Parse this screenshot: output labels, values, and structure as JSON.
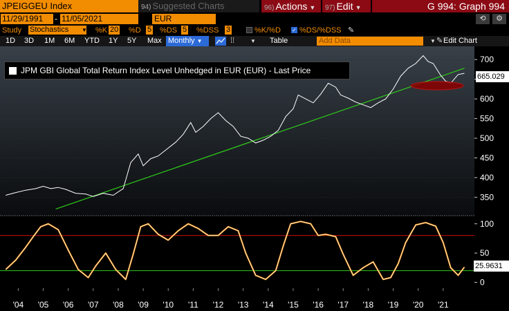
{
  "toolbar": {
    "ticker": "JPEIGGEU Index",
    "suggested_num": "94)",
    "suggested_label": "Suggested Charts",
    "actions_num": "96)",
    "actions_label": "Actions",
    "edit_num": "97)",
    "edit_label": "Edit",
    "graph_id": "G 994: Graph 994"
  },
  "range": {
    "start_date": "11/29/1991",
    "end_date": "11/05/2021",
    "currency": "EUR",
    "undo_icon": "undo-icon",
    "settings_icon": "settings-icon"
  },
  "study": {
    "label": "Study",
    "selected": "Stochastics",
    "k_label": "%K",
    "k_value": "20",
    "d_label": "%D",
    "d_value": "5",
    "ds_label": "%DS",
    "ds_value": "5",
    "dss_label": "%DSS",
    "dss_value": "3",
    "kd_label": "%K/%D",
    "kd_checked": false,
    "dsdss_label": "%DS/%DSS",
    "dsdss_checked": true
  },
  "periods": {
    "items": [
      "1D",
      "3D",
      "1M",
      "6M",
      "YTD",
      "1Y",
      "5Y",
      "Max"
    ],
    "selected": "Monthly",
    "table_label": "Table",
    "add_data_placeholder": "Add Data",
    "edit_chart_label": "Edit Chart"
  },
  "colors": {
    "accent": "#f28c00",
    "price_line": "#ffffff",
    "trend_line": "#2ecc1a",
    "stoch_k": "#f28c00",
    "stoch_d": "#ffffff",
    "overbought": "#d01010",
    "oversold": "#2ecc1a",
    "highlight_ellipse": "#c00000"
  },
  "chart_data": {
    "type": "line",
    "legend": "JPM GBI Global Total Return Index Level Unhedged in EUR (EUR) - Last Price",
    "last_price_label": "665.029",
    "stoch_last_label": "25.9631",
    "x_ticks": [
      "'04",
      "'05",
      "'06",
      "'07",
      "'08",
      "'09",
      "'10",
      "'11",
      "'12",
      "'13",
      "'14",
      "'15",
      "'16",
      "'17",
      "'18",
      "'19",
      "'20",
      "'21"
    ],
    "price_axis": {
      "ticks": [
        350,
        400,
        450,
        500,
        550,
        600,
        650,
        700
      ],
      "ylim": [
        305,
        725
      ]
    },
    "stoch_axis": {
      "ticks": [
        0,
        50,
        100
      ],
      "ylim": [
        -10,
        108
      ]
    },
    "price_series": {
      "name": "Last Price",
      "x": [
        2003.5,
        2003.9,
        2004.3,
        2004.7,
        2005.0,
        2005.3,
        2005.6,
        2005.9,
        2006.3,
        2006.7,
        2007.0,
        2007.4,
        2007.8,
        2008.2,
        2008.5,
        2008.8,
        2009.0,
        2009.3,
        2009.6,
        2009.9,
        2010.3,
        2010.6,
        2010.9,
        2011.1,
        2011.4,
        2011.7,
        2012.0,
        2012.3,
        2012.6,
        2012.9,
        2013.2,
        2013.5,
        2013.8,
        2014.1,
        2014.4,
        2014.7,
        2015.0,
        2015.2,
        2015.5,
        2015.8,
        2016.1,
        2016.4,
        2016.7,
        2016.9,
        2017.2,
        2017.5,
        2017.8,
        2018.1,
        2018.4,
        2018.7,
        2019.0,
        2019.3,
        2019.6,
        2019.9,
        2020.2,
        2020.4,
        2020.6,
        2020.9,
        2021.1,
        2021.3,
        2021.6,
        2021.85
      ],
      "y": [
        355,
        362,
        368,
        372,
        378,
        372,
        375,
        370,
        360,
        358,
        352,
        360,
        355,
        372,
        438,
        460,
        430,
        448,
        455,
        470,
        490,
        510,
        540,
        515,
        530,
        550,
        565,
        545,
        530,
        505,
        500,
        488,
        495,
        505,
        520,
        555,
        575,
        610,
        600,
        590,
        612,
        640,
        630,
        610,
        602,
        592,
        585,
        578,
        590,
        600,
        625,
        658,
        678,
        690,
        710,
        695,
        690,
        660,
        645,
        640,
        662,
        665
      ]
    },
    "trend_line": {
      "name": "Trend",
      "x": [
        2005.5,
        2021.85
      ],
      "y": [
        320,
        678
      ]
    },
    "stoch_series": [
      {
        "name": "%DS",
        "x": [
          2003.5,
          2003.9,
          2004.3,
          2004.6,
          2004.9,
          2005.2,
          2005.6,
          2006.0,
          2006.4,
          2006.8,
          2007.1,
          2007.5,
          2007.9,
          2008.3,
          2008.6,
          2008.9,
          2009.2,
          2009.6,
          2010.0,
          2010.4,
          2010.8,
          2011.2,
          2011.6,
          2012.0,
          2012.4,
          2012.8,
          2013.1,
          2013.5,
          2013.9,
          2014.3,
          2014.6,
          2014.9,
          2015.3,
          2015.7,
          2016.0,
          2016.3,
          2016.7,
          2017.0,
          2017.4,
          2017.8,
          2018.2,
          2018.6,
          2018.9,
          2019.2,
          2019.5,
          2019.9,
          2020.3,
          2020.7,
          2021.0,
          2021.3,
          2021.6,
          2021.85
        ],
        "y": [
          22,
          38,
          60,
          78,
          95,
          100,
          90,
          55,
          22,
          8,
          28,
          50,
          22,
          5,
          48,
          95,
          100,
          82,
          72,
          88,
          100,
          92,
          80,
          80,
          95,
          88,
          50,
          12,
          5,
          20,
          62,
          100,
          104,
          100,
          80,
          82,
          78,
          48,
          12,
          25,
          35,
          5,
          8,
          32,
          68,
          98,
          102,
          96,
          68,
          25,
          12,
          26
        ]
      }
    ]
  }
}
